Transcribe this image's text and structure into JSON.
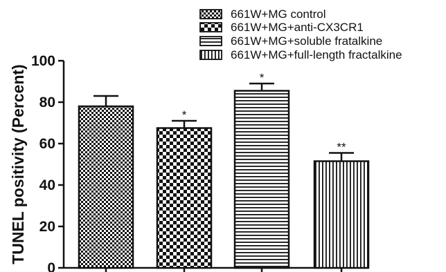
{
  "chart_data": {
    "type": "bar",
    "categories": [
      "661W+MG control",
      "661W+MG+anti-CX3CR1",
      "661W+MG+soluble fratalkine",
      "661W+MG+full-length fractalkine"
    ],
    "series": [
      {
        "name": "661W+MG control",
        "values": [
          78,
          null,
          null,
          null
        ],
        "pattern": "fine-checker"
      },
      {
        "name": "661W+MG+anti-CX3CR1",
        "values": [
          null,
          67.5,
          null,
          null
        ],
        "pattern": "coarse-checker"
      },
      {
        "name": "661W+MG+soluble fratalkine",
        "values": [
          null,
          null,
          85.5,
          null
        ],
        "pattern": "horizontal-stripes"
      },
      {
        "name": "661W+MG+full-length fractalkine",
        "values": [
          null,
          null,
          null,
          51.5
        ],
        "pattern": "vertical-stripes"
      }
    ],
    "values": [
      78,
      67.5,
      85.5,
      51.5
    ],
    "error_upper": [
      83,
      71,
      89,
      55.5
    ],
    "significance": [
      "",
      "*",
      "*",
      "**"
    ],
    "ylabel": "TUNEL positivity (Percent)",
    "xlabel": "",
    "ylim": [
      0,
      100
    ],
    "yticks": [
      0,
      20,
      40,
      60,
      80,
      100
    ],
    "grid": false,
    "legend_position": "top-right",
    "colors": {
      "bar_edge": "#111111",
      "bar_fill": "#111111",
      "background": "#ffffff"
    }
  }
}
